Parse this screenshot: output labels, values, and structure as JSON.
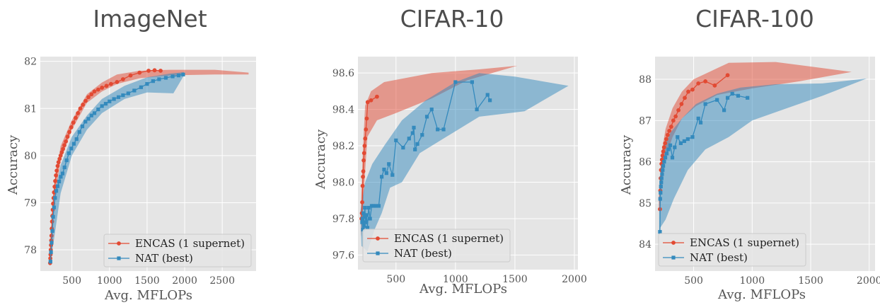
{
  "figure": {
    "colors": {
      "encas": "#e24a33",
      "nat": "#348abd",
      "axes_bg": "#e5e5e5",
      "grid": "#ffffff"
    }
  },
  "chart_data": [
    {
      "type": "line",
      "title": "ImageNet",
      "xlabel": "Avg. MFLOPs",
      "ylabel": "Accuracy",
      "xlim": [
        80,
        2950
      ],
      "ylim": [
        77.55,
        82.1
      ],
      "xticks": [
        500,
        1000,
        1500,
        2000,
        2500
      ],
      "yticks": [
        78,
        79,
        80,
        81,
        82
      ],
      "grid": true,
      "legend": "lower-right",
      "series": [
        {
          "name": "ENCAS (1 supernet)",
          "x": [
            210,
            213,
            216,
            219,
            222,
            225,
            228,
            232,
            236,
            240,
            245,
            250,
            256,
            262,
            270,
            278,
            288,
            298,
            310,
            322,
            336,
            350,
            366,
            382,
            400,
            420,
            442,
            466,
            492,
            520,
            550,
            580,
            612,
            646,
            682,
            720,
            760,
            800,
            850,
            900,
            960,
            1020,
            1100,
            1180,
            1280,
            1400,
            1520,
            1600,
            1680
          ],
          "y": [
            77.72,
            77.82,
            77.9,
            78.0,
            78.1,
            78.2,
            78.3,
            78.45,
            78.6,
            78.72,
            78.85,
            78.98,
            79.1,
            79.22,
            79.34,
            79.46,
            79.58,
            79.68,
            79.78,
            79.86,
            79.93,
            80.0,
            80.07,
            80.14,
            80.22,
            80.3,
            80.4,
            80.5,
            80.6,
            80.7,
            80.8,
            80.9,
            81.0,
            81.08,
            81.16,
            81.24,
            81.3,
            81.36,
            81.4,
            81.44,
            81.48,
            81.52,
            81.56,
            81.62,
            81.7,
            81.76,
            81.8,
            81.81,
            81.8
          ],
          "band_upper": [
            [
              200,
              77.85
            ],
            [
              260,
              79.3
            ],
            [
              350,
              80.2
            ],
            [
              500,
              80.75
            ],
            [
              700,
              81.3
            ],
            [
              900,
              81.55
            ],
            [
              1100,
              81.72
            ],
            [
              1400,
              81.8
            ],
            [
              1800,
              81.82
            ],
            [
              2400,
              81.82
            ],
            [
              2850,
              81.76
            ]
          ],
          "band_lower": [
            [
              2850,
              81.72
            ],
            [
              2400,
              81.72
            ],
            [
              1800,
              81.7
            ],
            [
              1400,
              81.64
            ],
            [
              1100,
              81.52
            ],
            [
              900,
              81.36
            ],
            [
              700,
              81.12
            ],
            [
              500,
              80.55
            ],
            [
              350,
              79.9
            ],
            [
              260,
              79.0
            ],
            [
              200,
              77.7
            ]
          ]
        },
        {
          "name": "NAT (best)",
          "x": [
            215,
            222,
            230,
            240,
            250,
            262,
            276,
            292,
            310,
            330,
            352,
            376,
            402,
            430,
            460,
            492,
            526,
            562,
            600,
            640,
            680,
            720,
            760,
            800,
            850,
            900,
            950,
            1000,
            1060,
            1120,
            1180,
            1250,
            1330,
            1420,
            1500,
            1580,
            1660,
            1750,
            1840,
            1920,
            1980
          ],
          "y": [
            77.75,
            77.95,
            78.15,
            78.4,
            78.7,
            78.9,
            79.1,
            79.25,
            79.35,
            79.45,
            79.55,
            79.62,
            79.75,
            79.9,
            80.05,
            80.15,
            80.25,
            80.35,
            80.5,
            80.62,
            80.72,
            80.78,
            80.85,
            80.9,
            80.98,
            81.05,
            81.1,
            81.15,
            81.2,
            81.24,
            81.28,
            81.32,
            81.38,
            81.45,
            81.52,
            81.58,
            81.62,
            81.65,
            81.68,
            81.7,
            81.72
          ],
          "band_upper": [
            [
              205,
              77.9
            ],
            [
              260,
              79.1
            ],
            [
              350,
              79.8
            ],
            [
              500,
              80.4
            ],
            [
              700,
              80.85
            ],
            [
              900,
              81.2
            ],
            [
              1200,
              81.48
            ],
            [
              1500,
              81.66
            ],
            [
              1800,
              81.74
            ],
            [
              1990,
              81.77
            ]
          ],
          "band_lower": [
            [
              1990,
              81.7
            ],
            [
              1850,
              81.32
            ],
            [
              1500,
              81.34
            ],
            [
              1200,
              81.2
            ],
            [
              900,
              80.9
            ],
            [
              700,
              80.55
            ],
            [
              500,
              80.0
            ],
            [
              350,
              79.2
            ],
            [
              260,
              78.2
            ],
            [
              205,
              77.65
            ]
          ]
        }
      ]
    },
    {
      "type": "line",
      "title": "CIFAR-10",
      "xlabel": "Avg. MFLOPs",
      "ylabel": "Accuracy",
      "xlim": [
        180,
        2030
      ],
      "ylim": [
        97.52,
        98.69
      ],
      "xticks": [
        500,
        1000,
        1500,
        2000
      ],
      "yticks": [
        97.6,
        97.8,
        98.0,
        98.2,
        98.4,
        98.6
      ],
      "grid": true,
      "legend": "lower-left",
      "series": [
        {
          "name": "ENCAS (1 supernet)",
          "x": [
            210,
            213,
            216,
            219,
            222,
            225,
            228,
            232,
            236,
            241,
            247,
            254,
            262,
            290,
            340
          ],
          "y": [
            97.8,
            97.83,
            97.89,
            97.98,
            98.03,
            98.06,
            98.12,
            98.16,
            98.2,
            98.24,
            98.29,
            98.35,
            98.44,
            98.45,
            98.47
          ],
          "band_upper": [
            [
              205,
              97.85
            ],
            [
              220,
              98.15
            ],
            [
              240,
              98.42
            ],
            [
              290,
              98.5
            ],
            [
              400,
              98.55
            ],
            [
              800,
              98.6
            ],
            [
              1200,
              98.62
            ],
            [
              1520,
              98.64
            ]
          ],
          "band_lower": [
            [
              1520,
              98.64
            ],
            [
              1100,
              98.56
            ],
            [
              800,
              98.46
            ],
            [
              500,
              98.38
            ],
            [
              340,
              98.34
            ],
            [
              260,
              98.25
            ],
            [
              235,
              98.0
            ],
            [
              215,
              97.78
            ],
            [
              205,
              97.7
            ]
          ]
        },
        {
          "name": "NAT (best)",
          "x": [
            215,
            218,
            222,
            226,
            230,
            234,
            238,
            245,
            252,
            260,
            270,
            282,
            296,
            310,
            330,
            355,
            380,
            400,
            420,
            440,
            470,
            500,
            560,
            610,
            640,
            650,
            660,
            680,
            720,
            760,
            800,
            850,
            900,
            1000,
            1140,
            1180,
            1270,
            1290
          ],
          "y": [
            97.78,
            97.8,
            97.74,
            97.83,
            97.76,
            97.81,
            97.86,
            97.78,
            97.82,
            97.75,
            97.86,
            97.8,
            97.87,
            97.87,
            97.87,
            97.87,
            98.03,
            98.07,
            98.05,
            98.1,
            98.04,
            98.23,
            98.19,
            98.24,
            98.27,
            98.3,
            98.18,
            98.21,
            98.26,
            98.36,
            98.4,
            98.29,
            98.29,
            98.55,
            98.55,
            98.4,
            98.48,
            98.45
          ],
          "band_upper": [
            [
              200,
              97.84
            ],
            [
              240,
              98.0
            ],
            [
              300,
              98.1
            ],
            [
              400,
              98.2
            ],
            [
              550,
              98.34
            ],
            [
              750,
              98.45
            ],
            [
              1000,
              98.55
            ],
            [
              1200,
              98.6
            ],
            [
              1500,
              98.58
            ],
            [
              1950,
              98.53
            ]
          ],
          "band_lower": [
            [
              1950,
              98.53
            ],
            [
              1580,
              98.39
            ],
            [
              1200,
              98.36
            ],
            [
              900,
              98.24
            ],
            [
              700,
              98.16
            ],
            [
              550,
              98.0
            ],
            [
              450,
              97.97
            ],
            [
              380,
              97.83
            ],
            [
              320,
              97.74
            ],
            [
              260,
              97.62
            ],
            [
              210,
              97.65
            ]
          ]
        }
      ]
    },
    {
      "type": "line",
      "title": "CIFAR-100",
      "xlabel": "Avg. MFLOPs",
      "ylabel": "Accuracy",
      "xlim": [
        170,
        2050
      ],
      "ylim": [
        83.35,
        88.55
      ],
      "xticks": [
        500,
        1000,
        1500,
        2000
      ],
      "yticks": [
        84,
        85,
        86,
        87,
        88
      ],
      "grid": true,
      "legend": "lower-left",
      "series": [
        {
          "name": "ENCAS (1 supernet)",
          "x": [
            212,
            215,
            218,
            221,
            225,
            229,
            234,
            240,
            247,
            256,
            266,
            278,
            292,
            308,
            326,
            346,
            370,
            396,
            424,
            454,
            490,
            540,
            600,
            680,
            790
          ],
          "y": [
            84.85,
            85.3,
            85.6,
            85.8,
            85.95,
            86.05,
            86.15,
            86.25,
            86.35,
            86.45,
            86.55,
            86.65,
            86.75,
            86.85,
            87.0,
            87.1,
            87.25,
            87.4,
            87.55,
            87.7,
            87.75,
            87.9,
            87.95,
            87.85,
            88.1
          ],
          "band_upper": [
            [
              202,
              85.1
            ],
            [
              225,
              86.2
            ],
            [
              260,
              86.8
            ],
            [
              320,
              87.3
            ],
            [
              400,
              87.7
            ],
            [
              500,
              88.0
            ],
            [
              650,
              88.2
            ],
            [
              800,
              88.4
            ],
            [
              1200,
              88.42
            ],
            [
              1850,
              88.18
            ]
          ],
          "band_lower": [
            [
              1850,
              88.18
            ],
            [
              1400,
              87.95
            ],
            [
              1000,
              87.78
            ],
            [
              700,
              87.62
            ],
            [
              520,
              87.35
            ],
            [
              400,
              87.05
            ],
            [
              320,
              86.6
            ],
            [
              260,
              86.1
            ],
            [
              225,
              85.5
            ],
            [
              202,
              84.8
            ]
          ]
        },
        {
          "name": "NAT (best)",
          "x": [
            212,
            214,
            217,
            220,
            223,
            226,
            230,
            235,
            240,
            248,
            258,
            270,
            284,
            300,
            318,
            338,
            362,
            390,
            420,
            450,
            490,
            540,
            560,
            600,
            700,
            760,
            790,
            830,
            880,
            960
          ],
          "y": [
            84.3,
            85.1,
            85.25,
            85.4,
            85.5,
            85.6,
            85.7,
            85.8,
            85.9,
            86.0,
            86.1,
            86.2,
            86.3,
            86.4,
            86.1,
            86.35,
            86.6,
            86.45,
            86.5,
            86.55,
            86.6,
            87.05,
            86.95,
            87.4,
            87.5,
            87.25,
            87.55,
            87.65,
            87.6,
            87.55
          ],
          "band_upper": [
            [
              205,
              85.4
            ],
            [
              240,
              86.3
            ],
            [
              300,
              86.7
            ],
            [
              400,
              87.05
            ],
            [
              520,
              87.4
            ],
            [
              700,
              87.65
            ],
            [
              900,
              87.8
            ],
            [
              1200,
              87.88
            ],
            [
              1600,
              87.9
            ],
            [
              1980,
              88.02
            ]
          ],
          "band_lower": [
            [
              1980,
              88.02
            ],
            [
              1600,
              87.6
            ],
            [
              1300,
              87.3
            ],
            [
              1000,
              87.0
            ],
            [
              800,
              86.6
            ],
            [
              600,
              86.3
            ],
            [
              450,
              85.8
            ],
            [
              330,
              85.1
            ],
            [
              260,
              84.6
            ],
            [
              215,
              84.4
            ],
            [
              205,
              84.3
            ]
          ]
        }
      ]
    }
  ]
}
